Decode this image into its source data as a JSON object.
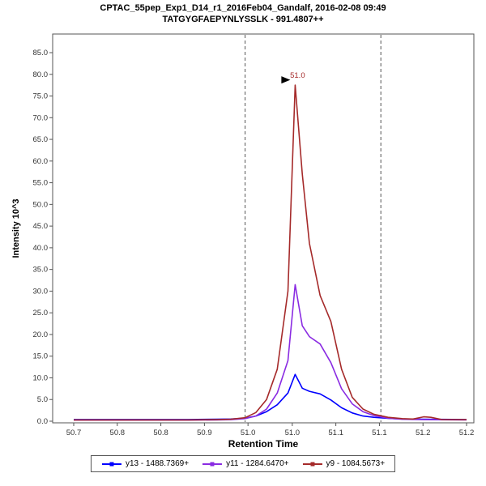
{
  "chart_data": {
    "type": "line",
    "title": "CPTAC_55pep_Exp1_D14_r1_2016Feb04_Gandalf, 2016-02-08 09:49",
    "subtitle": "TATGYGFAEPYNLYSSLK - 991.4807++",
    "xlabel": "Retention Time",
    "ylabel": "Intensity 10^3",
    "xlim": [
      50.7,
      51.25
    ],
    "ylim": [
      0,
      85
    ],
    "grid": false,
    "legend_position": "bottom",
    "y_ticks": [
      0,
      5,
      10,
      15,
      20,
      25,
      30,
      35,
      40,
      45,
      50,
      55,
      60,
      65,
      70,
      75,
      80,
      85
    ],
    "x_ticks": [
      {
        "value": 50.7,
        "label": "50.7"
      },
      {
        "value": 50.761,
        "label": "50.8"
      },
      {
        "value": 50.822,
        "label": "50.8"
      },
      {
        "value": 50.883,
        "label": "50.9"
      },
      {
        "value": 50.944,
        "label": "51.0"
      },
      {
        "value": 51.006,
        "label": "51.0"
      },
      {
        "value": 51.067,
        "label": "51.1"
      },
      {
        "value": 51.128,
        "label": "51.1"
      },
      {
        "value": 51.189,
        "label": "51.2"
      },
      {
        "value": 51.25,
        "label": "51.2"
      }
    ],
    "peak_boundaries": [
      50.94,
      51.13
    ],
    "peak_annotation": {
      "x": 51.01,
      "y": 77.5,
      "label": "51.0"
    },
    "series": [
      {
        "id": "y13",
        "name": "y13 - 1488.7369+",
        "color": "#0000FF",
        "points": [
          [
            50.7,
            0.4
          ],
          [
            50.76,
            0.4
          ],
          [
            50.82,
            0.4
          ],
          [
            50.86,
            0.4
          ],
          [
            50.9,
            0.45
          ],
          [
            50.92,
            0.5
          ],
          [
            50.94,
            0.7
          ],
          [
            50.955,
            1.2
          ],
          [
            50.97,
            2.2
          ],
          [
            50.985,
            3.8
          ],
          [
            51.0,
            6.5
          ],
          [
            51.01,
            10.8
          ],
          [
            51.02,
            7.6
          ],
          [
            51.03,
            6.9
          ],
          [
            51.045,
            6.3
          ],
          [
            51.06,
            4.9
          ],
          [
            51.075,
            3.1
          ],
          [
            51.09,
            1.9
          ],
          [
            51.105,
            1.2
          ],
          [
            51.12,
            0.9
          ],
          [
            51.14,
            0.65
          ],
          [
            51.16,
            0.5
          ],
          [
            51.19,
            0.45
          ],
          [
            51.25,
            0.4
          ]
        ]
      },
      {
        "id": "y11",
        "name": "y11 - 1284.6470+",
        "color": "#8A2BE2",
        "points": [
          [
            50.7,
            0.25
          ],
          [
            50.76,
            0.25
          ],
          [
            50.82,
            0.25
          ],
          [
            50.86,
            0.25
          ],
          [
            50.9,
            0.3
          ],
          [
            50.92,
            0.35
          ],
          [
            50.94,
            0.6
          ],
          [
            50.955,
            1.2
          ],
          [
            50.97,
            2.8
          ],
          [
            50.985,
            6.5
          ],
          [
            51.0,
            14
          ],
          [
            51.01,
            31.5
          ],
          [
            51.02,
            22
          ],
          [
            51.03,
            19.5
          ],
          [
            51.045,
            17.8
          ],
          [
            51.06,
            13.5
          ],
          [
            51.075,
            7.5
          ],
          [
            51.09,
            4.0
          ],
          [
            51.105,
            2.2
          ],
          [
            51.12,
            1.3
          ],
          [
            51.14,
            0.7
          ],
          [
            51.16,
            0.45
          ],
          [
            51.19,
            0.35
          ],
          [
            51.25,
            0.3
          ]
        ]
      },
      {
        "id": "y9",
        "name": "y9 - 1084.5673+",
        "color": "#A52A2A",
        "points": [
          [
            50.7,
            0.3
          ],
          [
            50.76,
            0.3
          ],
          [
            50.82,
            0.3
          ],
          [
            50.86,
            0.3
          ],
          [
            50.9,
            0.35
          ],
          [
            50.92,
            0.45
          ],
          [
            50.94,
            0.8
          ],
          [
            50.955,
            2.0
          ],
          [
            50.97,
            5.0
          ],
          [
            50.985,
            12
          ],
          [
            51.0,
            30
          ],
          [
            51.01,
            77.5
          ],
          [
            51.02,
            57
          ],
          [
            51.03,
            41
          ],
          [
            51.045,
            29
          ],
          [
            51.06,
            23
          ],
          [
            51.075,
            12
          ],
          [
            51.09,
            5.5
          ],
          [
            51.105,
            2.8
          ],
          [
            51.12,
            1.6
          ],
          [
            51.14,
            0.9
          ],
          [
            51.16,
            0.6
          ],
          [
            51.175,
            0.5
          ],
          [
            51.19,
            1.0
          ],
          [
            51.2,
            0.9
          ],
          [
            51.215,
            0.4
          ],
          [
            51.25,
            0.35
          ]
        ]
      }
    ]
  },
  "colors": {
    "frame": "#555555",
    "tick_text": "#333333",
    "boundary_line": "#555555",
    "annotation_text": "#A52A2A",
    "pointer": "#000000",
    "background": "#ffffff"
  }
}
